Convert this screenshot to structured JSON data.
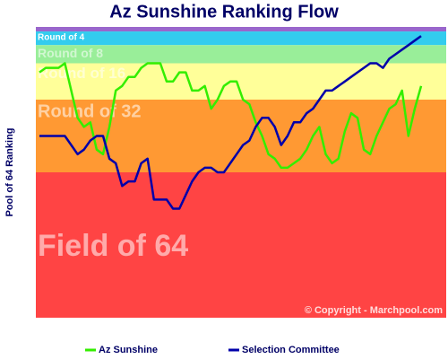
{
  "chart_data": {
    "type": "line",
    "title": "Az Sunshine Ranking Flow",
    "y_label": "Pool of 64 Ranking",
    "copyright": "© Copyright - Marchpool.com",
    "ylim": [
      64,
      0
    ],
    "bands": [
      {
        "from": 0,
        "to": 1,
        "color": "#9966cc"
      },
      {
        "label": "Round of 4",
        "from": 1,
        "to": 4,
        "color": "#33ccee"
      },
      {
        "label": "Round of 8",
        "from": 4,
        "to": 8,
        "color": "#99ee99"
      },
      {
        "label": "Round of 16",
        "from": 8,
        "to": 16,
        "color": "#ffff99"
      },
      {
        "label": "Round of 32",
        "from": 16,
        "to": 32,
        "color": "#ff9933"
      },
      {
        "label": "Field of 64",
        "from": 32,
        "to": 64,
        "color": "#ff4444"
      }
    ],
    "categories": [
      null,
      null,
      null,
      null,
      null,
      null,
      null,
      null,
      null,
      null,
      null,
      null,
      null,
      null,
      null,
      null,
      null,
      null,
      null,
      null,
      null,
      null,
      null,
      null,
      null,
      null,
      null,
      null,
      null,
      null,
      null,
      null,
      null,
      null,
      null,
      null,
      null,
      null,
      null,
      null,
      null,
      null,
      null,
      null,
      null,
      null,
      null,
      null,
      null,
      null,
      null,
      null,
      null,
      null,
      null,
      null,
      null,
      null,
      null,
      null,
      null
    ],
    "series": [
      {
        "name": "Az Sunshine",
        "color": "#33ee00",
        "values": [
          10,
          9,
          9,
          9,
          8,
          14,
          20,
          22,
          21,
          27,
          28,
          22,
          14,
          13,
          11,
          11,
          9,
          8,
          8,
          8,
          12,
          12,
          10,
          10,
          14,
          14,
          13,
          18,
          16,
          13,
          12,
          12,
          16,
          17,
          21,
          24,
          28,
          29,
          31,
          31,
          30,
          29,
          27,
          24,
          22,
          28,
          30,
          29,
          23,
          19,
          20,
          27,
          28,
          24,
          21,
          18,
          17,
          14,
          24,
          18,
          13
        ]
      },
      {
        "name": "Selection Committee",
        "color": "#0000aa",
        "values": [
          24,
          24,
          24,
          24,
          24,
          26,
          28,
          27,
          25,
          24,
          24,
          29,
          30,
          35,
          34,
          34,
          30,
          29,
          38,
          38,
          38,
          40,
          40,
          37,
          34,
          32,
          31,
          31,
          32,
          32,
          30,
          28,
          26,
          25,
          22,
          20,
          20,
          22,
          26,
          24,
          21,
          21,
          19,
          18,
          16,
          14,
          14,
          13,
          12,
          11,
          10,
          9,
          8,
          8,
          9,
          7,
          6,
          5,
          4,
          3,
          2
        ]
      }
    ]
  }
}
